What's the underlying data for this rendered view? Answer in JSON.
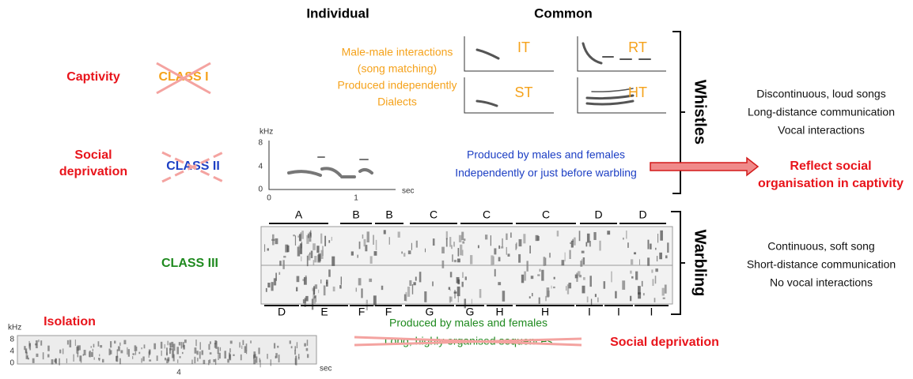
{
  "header": {
    "individual": "Individual",
    "common": "Common"
  },
  "conditions": {
    "captivity": "Captivity",
    "social_deprivation": [
      "Social",
      "deprivation"
    ],
    "isolation": "Isolation"
  },
  "classes": {
    "class_i": "CLASS I",
    "class_ii": "CLASS II",
    "class_iii": "CLASS III"
  },
  "class_i_notes": [
    "Male-male interactions",
    "(song matching)",
    "Produced independently",
    "Dialects"
  ],
  "whistle_types": [
    "IT",
    "RT",
    "ST",
    "HT"
  ],
  "class_ii_spectrogram": {
    "y_label": "kHz",
    "yticks": [
      8,
      4,
      0
    ],
    "xticks": [
      0,
      1
    ],
    "x_label": "sec"
  },
  "class_ii_notes": [
    "Produced by males and females",
    "Independently or just before warbling"
  ],
  "arrow_target": [
    "Reflect social",
    "organisation in captivity"
  ],
  "whistles": {
    "label": "Whistles",
    "notes": [
      "Discontinuous, loud songs",
      "Long-distance communication",
      "Vocal interactions"
    ]
  },
  "warbling": {
    "label": "Warbling",
    "notes": [
      "Continuous, soft song",
      "Short-distance communication",
      "No vocal interactions"
    ],
    "top_segments": [
      "A",
      "B",
      "B",
      "C",
      "C",
      "C",
      "D",
      "D"
    ],
    "bottom_segments": [
      "D",
      "E",
      "F",
      "F",
      "G",
      "G",
      "H",
      "H",
      "I",
      "I",
      "I"
    ]
  },
  "class_iii_notes": {
    "produced": "Produced by males and females",
    "crossed": "Long, highly organised sequences",
    "condition": "Social deprivation"
  },
  "isolation_spectrogram": {
    "y_label": "kHz",
    "yticks": [
      8,
      4,
      0
    ],
    "xticks": [
      4
    ],
    "x_label": "sec"
  }
}
